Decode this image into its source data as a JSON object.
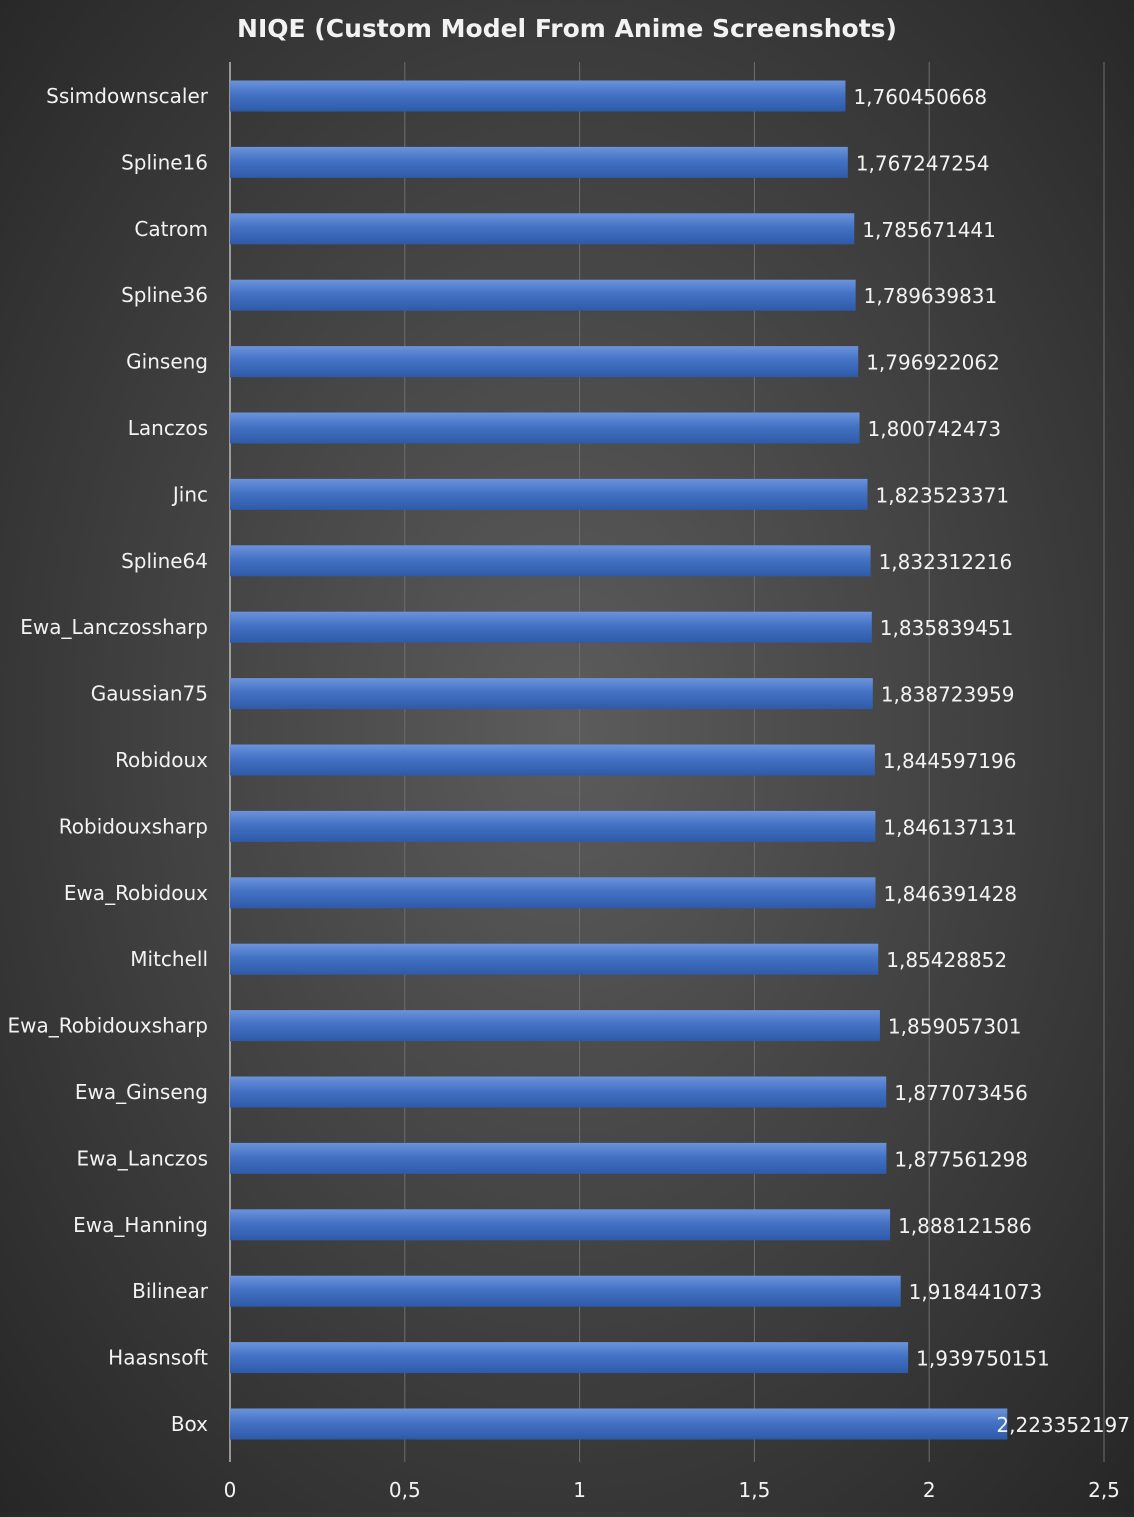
{
  "chart_data": {
    "type": "bar",
    "orientation": "horizontal",
    "title": "NIQE (Custom Model From Anime Screenshots)",
    "xlabel": "",
    "ylabel": "",
    "xlim": [
      0,
      2.5
    ],
    "x_ticks": [
      0,
      0.5,
      1,
      1.5,
      2,
      2.5
    ],
    "x_tick_labels": [
      "0",
      "0,5",
      "1",
      "1,5",
      "2",
      "2,5"
    ],
    "grid": true,
    "legend": "none",
    "categories": [
      "Ssimdownscaler",
      "Spline16",
      "Catrom",
      "Spline36",
      "Ginseng",
      "Lanczos",
      "Jinc",
      "Spline64",
      "Ewa_Lanczossharp",
      "Gaussian75",
      "Robidoux",
      "Robidouxsharp",
      "Ewa_Robidoux",
      "Mitchell",
      "Ewa_Robidouxsharp",
      "Ewa_Ginseng",
      "Ewa_Lanczos",
      "Ewa_Hanning",
      "Bilinear",
      "Haasnsoft",
      "Box"
    ],
    "values": [
      1.760450668,
      1.767247254,
      1.785671441,
      1.789639831,
      1.796922062,
      1.800742473,
      1.823523371,
      1.832312216,
      1.835839451,
      1.838723959,
      1.844597196,
      1.846137131,
      1.846391428,
      1.85428852,
      1.859057301,
      1.877073456,
      1.877561298,
      1.888121586,
      1.918441073,
      1.939750151,
      2.223352197
    ],
    "data_labels": [
      "1,760450668",
      "1,767247254",
      "1,785671441",
      "1,789639831",
      "1,796922062",
      "1,800742473",
      "1,823523371",
      "1,832312216",
      "1,835839451",
      "1,838723959",
      "1,844597196",
      "1,846137131",
      "1,846391428",
      "1,85428852",
      "1,859057301",
      "1,877073456",
      "1,877561298",
      "1,888121586",
      "1,918441073",
      "1,939750151",
      "2,223352197"
    ],
    "colors": {
      "bar": "#4472c4",
      "bar_light": "#6b93dc",
      "bar_dark": "#2e5aa8",
      "text": "#f2f2f2",
      "grid": "#6e6e6e",
      "axis": "#d9d9d9"
    }
  }
}
